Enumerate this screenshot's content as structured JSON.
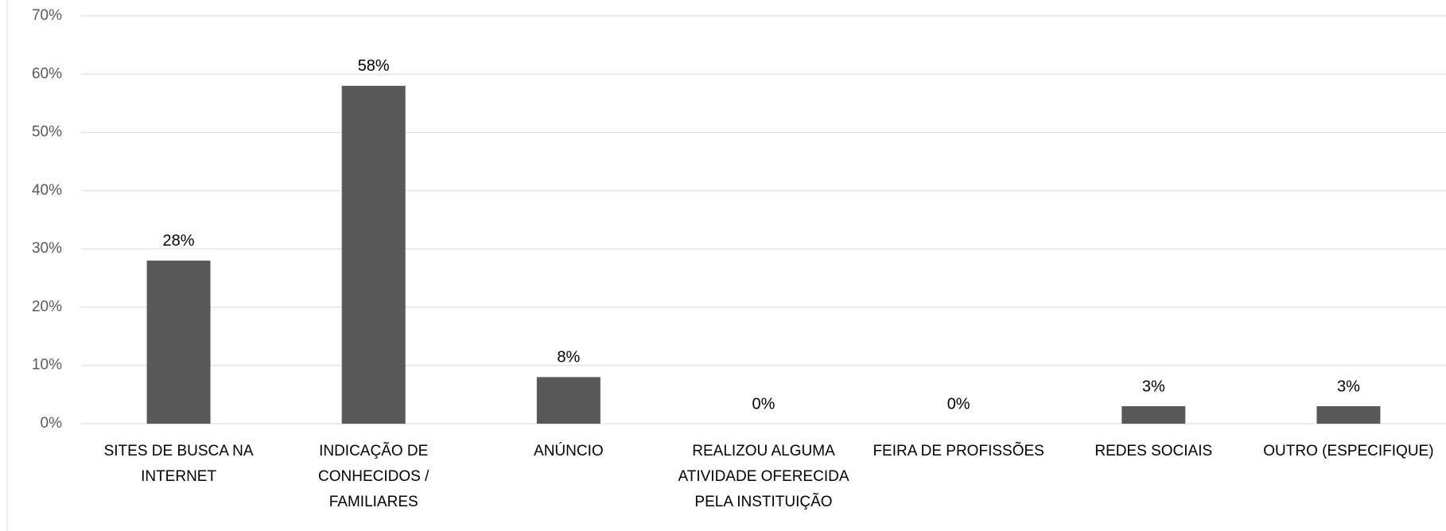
{
  "chart_data": {
    "type": "bar",
    "categories": [
      "SITES DE BUSCA NA INTERNET",
      "INDICAÇÃO DE CONHECIDOS / FAMILIARES",
      "ANÚNCIO",
      "REALIZOU ALGUMA ATIVIDADE OFERECIDA PELA INSTITUIÇÃO",
      "FEIRA DE PROFISSÕES",
      "REDES SOCIAIS",
      "OUTRO (ESPECIFIQUE)"
    ],
    "values": [
      28,
      58,
      8,
      0,
      0,
      3,
      3
    ],
    "value_labels": [
      "28%",
      "58%",
      "8%",
      "0%",
      "0%",
      "3%",
      "3%"
    ],
    "color": "#595959",
    "ylim": [
      0,
      70
    ],
    "yticks": [
      {
        "value": 0,
        "label": "0%"
      },
      {
        "value": 10,
        "label": "10%"
      },
      {
        "value": 20,
        "label": "20%"
      },
      {
        "value": 30,
        "label": "30%"
      },
      {
        "value": 40,
        "label": "40%"
      },
      {
        "value": 50,
        "label": "50%"
      },
      {
        "value": 60,
        "label": "60%"
      },
      {
        "value": 70,
        "label": "70%"
      }
    ],
    "grid": true
  }
}
